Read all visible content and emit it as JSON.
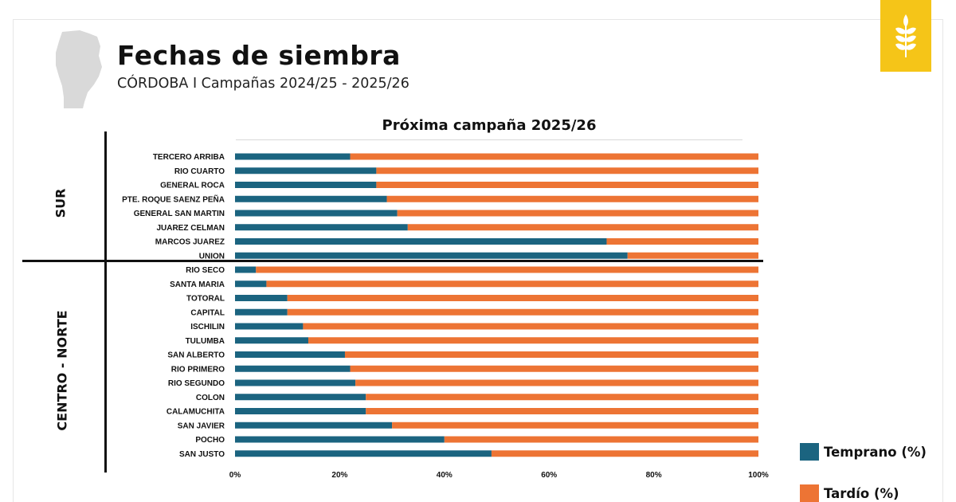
{
  "header": {
    "title": "Fechas de siembra",
    "subtitle": "CÓRDOBA I Campañas 2024/25 - 2025/26"
  },
  "colors": {
    "temprano": "#1b6480",
    "tardio": "#ed7434",
    "logo_bg": "#f5c518",
    "map_fill": "#d9d9d9"
  },
  "icons": {
    "map": "cordoba-map-icon",
    "logo": "wheat-icon"
  },
  "groups": {
    "sur": "SUR",
    "centro_norte": "CENTRO - NORTE"
  },
  "chart_data": {
    "type": "bar",
    "orientation": "horizontal",
    "stacked": "100%",
    "title": "Próxima campaña 2025/26",
    "categories": [
      "TERCERO ARRIBA",
      "RIO CUARTO",
      "GENERAL ROCA",
      "PTE. ROQUE SAENZ PEÑA",
      "GENERAL SAN MARTIN",
      "JUAREZ CELMAN",
      "MARCOS JUAREZ",
      "UNION",
      "RIO SECO",
      "SANTA MARIA",
      "TOTORAL",
      "CAPITAL",
      "ISCHILIN",
      "TULUMBA",
      "SAN ALBERTO",
      "RIO PRIMERO",
      "RIO SEGUNDO",
      "COLON",
      "CALAMUCHITA",
      "SAN JAVIER",
      "POCHO",
      "SAN JUSTO"
    ],
    "series": [
      {
        "name": "Temprano (%)",
        "values": [
          22,
          27,
          27,
          29,
          31,
          33,
          71,
          75,
          4,
          6,
          10,
          10,
          13,
          14,
          21,
          22,
          23,
          25,
          25,
          30,
          40,
          49
        ]
      },
      {
        "name": "Tardío (%)",
        "values": [
          78,
          73,
          73,
          71,
          69,
          67,
          29,
          25,
          96,
          94,
          90,
          90,
          87,
          86,
          79,
          78,
          77,
          75,
          75,
          70,
          60,
          51
        ]
      }
    ],
    "xticks": [
      "0%",
      "20%",
      "40%",
      "60%",
      "80%",
      "100%"
    ],
    "xlim": [
      0,
      100
    ],
    "legend": "bottom-right",
    "grid": false
  }
}
